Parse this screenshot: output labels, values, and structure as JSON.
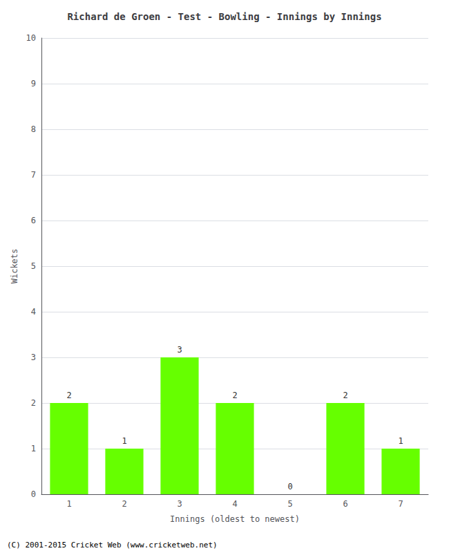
{
  "chart_data": {
    "type": "bar",
    "title": "Richard de Groen - Test - Bowling - Innings by Innings",
    "xlabel": "Innings (oldest to newest)",
    "ylabel": "Wickets",
    "categories": [
      "1",
      "2",
      "3",
      "4",
      "5",
      "6",
      "7"
    ],
    "values": [
      2,
      1,
      3,
      2,
      0,
      2,
      1
    ],
    "color": "#66ff00",
    "ylim": [
      0,
      10
    ],
    "yticks": [
      0,
      1,
      2,
      3,
      4,
      5,
      6,
      7,
      8,
      9,
      10
    ],
    "grid": true,
    "data_labels": true,
    "annotations": [
      "(C) 2001-2015 Cricket Web (www.cricketweb.net)"
    ]
  }
}
